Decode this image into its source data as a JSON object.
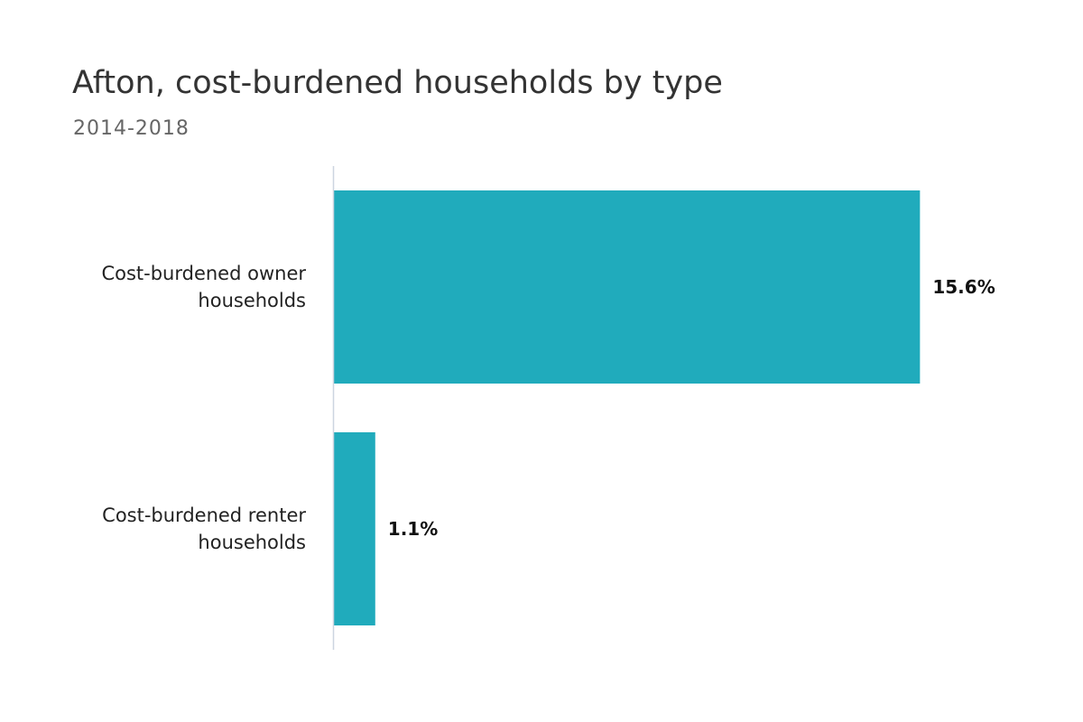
{
  "chart_data": {
    "type": "bar",
    "orientation": "horizontal",
    "title": "Afton, cost-burdened households by type",
    "subtitle": "2014-2018",
    "categories": [
      [
        "Cost-burdened owner",
        "households"
      ],
      [
        "Cost-burdened renter",
        "households"
      ]
    ],
    "values": [
      15.6,
      1.1
    ],
    "value_labels": [
      "15.6%",
      "1.1%"
    ],
    "xlim": [
      0,
      16
    ],
    "grid": false,
    "legend": "none",
    "colors": {
      "bar": "#20abbc",
      "axis": "#cdd5e0"
    }
  }
}
